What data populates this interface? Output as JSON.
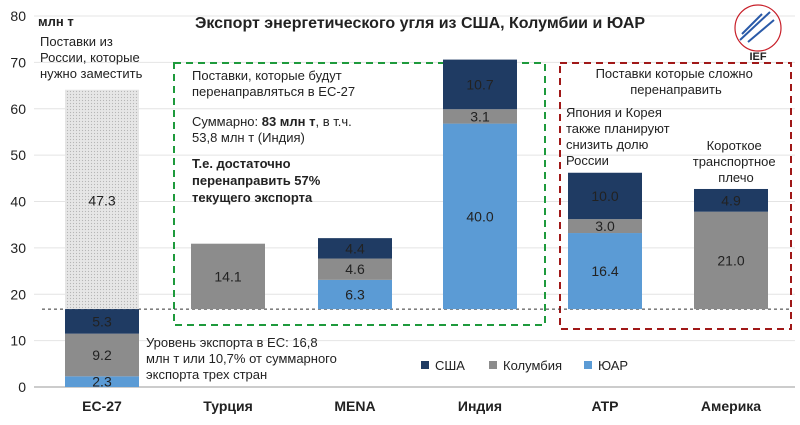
{
  "chart_data": {
    "type": "bar",
    "stacked": true,
    "title": "Экспорт энергетического угля из США, Колумбии и ЮАР",
    "ylabel": "млн т",
    "ylim": [
      0,
      80
    ],
    "yticks": [
      0,
      10,
      20,
      30,
      40,
      50,
      60,
      70,
      80
    ],
    "categories": [
      "ЕС-27",
      "Турция",
      "MENA",
      "Индия",
      "ATP",
      "Америка"
    ],
    "legend_position": "bottom-right",
    "series": [
      {
        "name": "ЮАР",
        "color": "#5b9bd5",
        "values": [
          2.3,
          null,
          6.3,
          40.0,
          16.4,
          null
        ]
      },
      {
        "name": "Колумбия",
        "color": "#8c8c8c",
        "values": [
          9.2,
          14.1,
          4.6,
          3.1,
          3.0,
          21.0
        ]
      },
      {
        "name": "США",
        "color": "#1f3b63",
        "values": [
          5.3,
          null,
          4.4,
          10.7,
          10.0,
          4.9
        ]
      }
    ],
    "baselines": [
      null,
      16.8,
      16.8,
      16.8,
      16.8,
      16.8
    ],
    "russia_supply": {
      "category": "ЕС-27",
      "base": 16.8,
      "value": 47.3,
      "color": "#e6e6e6"
    },
    "reference_line": {
      "value": 16.8
    },
    "legend_order": [
      "США",
      "Колумбия",
      "ЮАР"
    ],
    "annotations": {
      "russia_supply": [
        "Поставки из",
        "России, которые",
        "нужно заместить"
      ],
      "green_box": {
        "title": [
          "Поставки, которые будут",
          "перенаправляться  в ЕС-27"
        ],
        "sum_prefix": "Суммарно: ",
        "sum_value": "83 млн т",
        "sum_suffix": ", в т.ч.",
        "sum_line2": "53,8 млн  т (Индия)",
        "conclusion": [
          "Т.е. достаточно",
          "перенаправить 57%",
          "текущего экспорта"
        ]
      },
      "red_box": {
        "title": [
          "Поставки которые сложно",
          "перенаправить"
        ],
        "atp_note": [
          "Япония и Корея",
          "также планируют",
          "снизить долю",
          "России"
        ],
        "america_note": [
          "Короткое",
          "транспортное",
          "плечо"
        ]
      },
      "eu_level": [
        "Уровень экспорта в ЕС: 16,8",
        "млн  т или 10,7% от суммарного",
        "экспорта трех стран"
      ]
    }
  },
  "logo": {
    "text": "IEF",
    "ring_text": "INTERNATIONAL ENERGY FORUM"
  }
}
